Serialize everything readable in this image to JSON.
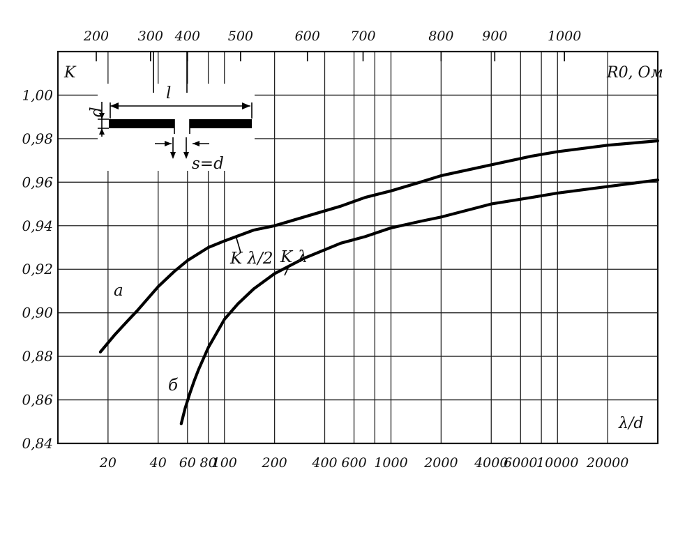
{
  "chart_data": {
    "type": "line",
    "x_scale": "log",
    "xlabel": "λ/d",
    "ylabel": "K",
    "secondary_x_label": "R0, Ом",
    "ylim": [
      0.84,
      1.02
    ],
    "xlim": [
      10,
      40000
    ],
    "grid": true,
    "x_ticks": [
      {
        "value": 20,
        "label": "20"
      },
      {
        "value": 40,
        "label": "40"
      },
      {
        "value": 60,
        "label": "60"
      },
      {
        "value": 80,
        "label": "80"
      },
      {
        "value": 100,
        "label": "100"
      },
      {
        "value": 200,
        "label": "200"
      },
      {
        "value": 400,
        "label": "400"
      },
      {
        "value": 600,
        "label": "600"
      },
      {
        "value": 1000,
        "label": "1000"
      },
      {
        "value": 2000,
        "label": "2000"
      },
      {
        "value": 4000,
        "label": "4000"
      },
      {
        "value": 6000,
        "label": "6000"
      },
      {
        "value": 10000,
        "label": "10000"
      },
      {
        "value": 20000,
        "label": "20000"
      }
    ],
    "x_grid_values": [
      20,
      40,
      60,
      80,
      100,
      200,
      400,
      600,
      800,
      1000,
      2000,
      4000,
      6000,
      8000,
      10000,
      20000
    ],
    "y_ticks": [
      {
        "value": 0.84,
        "label": "0,84"
      },
      {
        "value": 0.86,
        "label": "0,86"
      },
      {
        "value": 0.88,
        "label": "0,88"
      },
      {
        "value": 0.9,
        "label": "0,90"
      },
      {
        "value": 0.92,
        "label": "0,92"
      },
      {
        "value": 0.94,
        "label": "0,94"
      },
      {
        "value": 0.96,
        "label": "0,96"
      },
      {
        "value": 0.98,
        "label": "0,98"
      },
      {
        "value": 1.0,
        "label": "1,00"
      }
    ],
    "top_axis_ticks": [
      {
        "label": "200",
        "at_x": 17
      },
      {
        "label": "300",
        "at_x": 36
      },
      {
        "label": "400",
        "at_x": 60
      },
      {
        "label": "500",
        "at_x": 125
      },
      {
        "label": "600",
        "at_x": 315
      },
      {
        "label": "700",
        "at_x": 680
      },
      {
        "label": "800",
        "at_x": 2000
      },
      {
        "label": "900",
        "at_x": 4200
      },
      {
        "label": "1000",
        "at_x": 11000
      }
    ],
    "series": [
      {
        "name": "K λ/2",
        "marker": "а",
        "x": [
          18,
          22,
          26,
          30,
          40,
          50,
          60,
          80,
          100,
          150,
          200,
          300,
          500,
          700,
          1000,
          1500,
          2000,
          4000,
          7000,
          10000,
          20000,
          40000
        ],
        "y": [
          0.882,
          0.89,
          0.896,
          0.901,
          0.912,
          0.919,
          0.924,
          0.93,
          0.933,
          0.938,
          0.94,
          0.944,
          0.949,
          0.953,
          0.956,
          0.96,
          0.963,
          0.968,
          0.972,
          0.974,
          0.977,
          0.979
        ]
      },
      {
        "name": "K λ",
        "marker": "б",
        "x": [
          55,
          58,
          62,
          66,
          70,
          80,
          100,
          120,
          150,
          200,
          300,
          500,
          700,
          1000,
          1500,
          2000,
          4000,
          7000,
          10000,
          20000,
          40000
        ],
        "y": [
          0.849,
          0.856,
          0.863,
          0.869,
          0.874,
          0.884,
          0.897,
          0.904,
          0.911,
          0.918,
          0.925,
          0.932,
          0.935,
          0.939,
          0.942,
          0.944,
          0.95,
          0.953,
          0.955,
          0.958,
          0.961
        ]
      }
    ]
  },
  "inset": {
    "l_label": "l",
    "d_label": "d",
    "s_label": "s=d"
  }
}
